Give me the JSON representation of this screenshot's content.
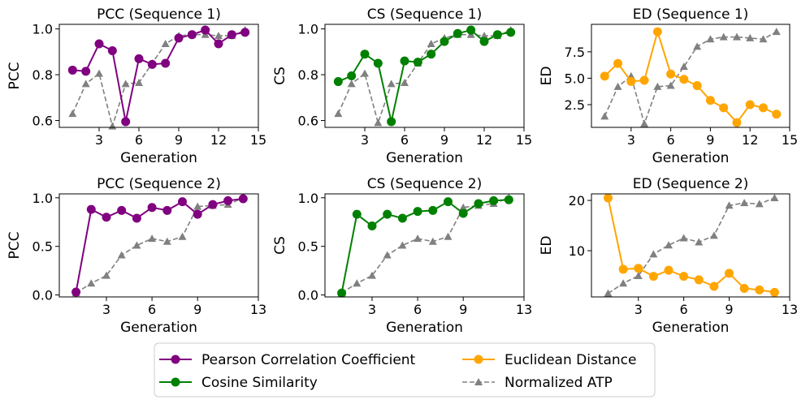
{
  "chart_data": [
    {
      "type": "line",
      "title": "PCC (Sequence 1)",
      "xlabel": "Generation",
      "ylabel": "PCC",
      "xlim": [
        0,
        15
      ],
      "ylim": [
        0.57,
        1.02
      ],
      "xticks": [
        3,
        6,
        9,
        12,
        15
      ],
      "xtick_labels": [
        "3",
        "6",
        "9",
        "12",
        "15"
      ],
      "yticks": [
        0.6,
        0.8,
        1.0
      ],
      "ytick_labels": [
        "0.6",
        "0.8",
        "1.0"
      ],
      "x": [
        1,
        2,
        3,
        4,
        5,
        6,
        7,
        8,
        9,
        10,
        11,
        12,
        13,
        14
      ],
      "series": [
        {
          "name": "Pearson Correlation Coefficient",
          "color": "#800080",
          "marker": "circle",
          "dashed": false,
          "values": [
            0.82,
            0.815,
            0.935,
            0.905,
            0.595,
            0.87,
            0.845,
            0.85,
            0.96,
            0.975,
            0.995,
            0.935,
            0.975,
            0.985
          ]
        },
        {
          "name": "Normalized ATP",
          "color": "#808080",
          "marker": "triangle",
          "dashed": true,
          "values": [
            0.63,
            0.76,
            0.805,
            0.575,
            0.76,
            0.765,
            0.85,
            0.935,
            0.97,
            0.975,
            0.975,
            0.97,
            0.97,
            0.995
          ]
        }
      ]
    },
    {
      "type": "line",
      "title": "CS (Sequence 1)",
      "xlabel": "Generation",
      "ylabel": "CS",
      "xlim": [
        0,
        15
      ],
      "ylim": [
        0.57,
        1.02
      ],
      "xticks": [
        3,
        6,
        9,
        12,
        15
      ],
      "xtick_labels": [
        "3",
        "6",
        "9",
        "12",
        "15"
      ],
      "yticks": [
        0.6,
        0.8,
        1.0
      ],
      "ytick_labels": [
        "0.6",
        "0.8",
        "1.0"
      ],
      "x": [
        1,
        2,
        3,
        4,
        5,
        6,
        7,
        8,
        9,
        10,
        11,
        12,
        13,
        14
      ],
      "series": [
        {
          "name": "Cosine Similarity",
          "color": "#008000",
          "marker": "circle",
          "dashed": false,
          "values": [
            0.77,
            0.795,
            0.89,
            0.85,
            0.595,
            0.86,
            0.855,
            0.89,
            0.945,
            0.98,
            0.995,
            0.945,
            0.975,
            0.985
          ]
        },
        {
          "name": "Normalized ATP",
          "color": "#808080",
          "marker": "triangle",
          "dashed": true,
          "values": [
            0.63,
            0.76,
            0.805,
            0.59,
            0.76,
            0.765,
            0.85,
            0.935,
            0.96,
            0.975,
            0.975,
            0.97,
            0.97,
            0.995
          ]
        }
      ]
    },
    {
      "type": "line",
      "title": "ED (Sequence 1)",
      "xlabel": "Generation",
      "ylabel": "ED",
      "xlim": [
        0,
        15
      ],
      "ylim": [
        0.35,
        10.1
      ],
      "xticks": [
        3,
        6,
        9,
        12,
        15
      ],
      "xtick_labels": [
        "3",
        "6",
        "9",
        "12",
        "15"
      ],
      "yticks": [
        2.5,
        5.0,
        7.5
      ],
      "ytick_labels": [
        "2.5",
        "5.0",
        "7.5"
      ],
      "x": [
        1,
        2,
        3,
        4,
        5,
        6,
        7,
        8,
        9,
        10,
        11,
        12,
        13,
        14
      ],
      "series": [
        {
          "name": "Euclidean Distance",
          "color": "#FFA500",
          "marker": "circle",
          "dashed": false,
          "values": [
            5.2,
            6.4,
            4.7,
            4.8,
            9.4,
            5.4,
            4.9,
            4.3,
            2.9,
            2.2,
            0.8,
            2.5,
            2.2,
            1.6
          ]
        },
        {
          "name": "Normalized ATP",
          "color": "#808080",
          "marker": "triangle",
          "dashed": true,
          "values": [
            1.4,
            4.2,
            5.2,
            0.7,
            4.2,
            4.3,
            6.1,
            8.0,
            8.7,
            8.9,
            8.9,
            8.8,
            8.7,
            9.4
          ]
        }
      ]
    },
    {
      "type": "line",
      "title": "PCC (Sequence 2)",
      "xlabel": "Generation",
      "ylabel": "PCC",
      "xlim": [
        -0.1,
        13
      ],
      "ylim": [
        -0.02,
        1.04
      ],
      "xticks": [
        3,
        6,
        9,
        13
      ],
      "xtick_labels": [
        "3",
        "6",
        "9",
        "13"
      ],
      "yticks": [
        0.0,
        0.5,
        1.0
      ],
      "ytick_labels": [
        "0.0",
        "0.5",
        "1.0"
      ],
      "x": [
        1,
        2,
        3,
        4,
        5,
        6,
        7,
        8,
        9,
        10,
        11,
        12
      ],
      "series": [
        {
          "name": "Pearson Correlation Coefficient",
          "color": "#800080",
          "marker": "circle",
          "dashed": false,
          "values": [
            0.03,
            0.88,
            0.8,
            0.87,
            0.79,
            0.9,
            0.87,
            0.96,
            0.83,
            0.93,
            0.97,
            0.99
          ]
        },
        {
          "name": "Normalized ATP",
          "color": "#808080",
          "marker": "triangle",
          "dashed": true,
          "values": [
            0.02,
            0.12,
            0.2,
            0.41,
            0.51,
            0.58,
            0.55,
            0.6,
            0.91,
            0.92,
            0.93,
            1.0
          ]
        }
      ]
    },
    {
      "type": "line",
      "title": "CS (Sequence 2)",
      "xlabel": "Generation",
      "ylabel": "CS",
      "xlim": [
        -0.1,
        13
      ],
      "ylim": [
        -0.02,
        1.04
      ],
      "xticks": [
        3,
        6,
        9,
        13
      ],
      "xtick_labels": [
        "3",
        "6",
        "9",
        "13"
      ],
      "yticks": [
        0.0,
        0.5,
        1.0
      ],
      "ytick_labels": [
        "0.0",
        "0.5",
        "1.0"
      ],
      "x": [
        1,
        2,
        3,
        4,
        5,
        6,
        7,
        8,
        9,
        10,
        11,
        12
      ],
      "series": [
        {
          "name": "Cosine Similarity",
          "color": "#008000",
          "marker": "circle",
          "dashed": false,
          "values": [
            0.02,
            0.83,
            0.71,
            0.83,
            0.79,
            0.86,
            0.87,
            0.96,
            0.84,
            0.94,
            0.97,
            0.98
          ]
        },
        {
          "name": "Normalized ATP",
          "color": "#808080",
          "marker": "triangle",
          "dashed": true,
          "values": [
            0.02,
            0.12,
            0.2,
            0.41,
            0.51,
            0.58,
            0.55,
            0.6,
            0.9,
            0.92,
            0.94,
            1.0
          ]
        }
      ]
    },
    {
      "type": "line",
      "title": "ED (Sequence 2)",
      "xlabel": "Generation",
      "ylabel": "ED",
      "xlim": [
        -0.1,
        13
      ],
      "ylim": [
        0.8,
        21.3
      ],
      "xticks": [
        3,
        6,
        9,
        13
      ],
      "xtick_labels": [
        "3",
        "6",
        "9",
        "13"
      ],
      "yticks": [
        10,
        20
      ],
      "ytick_labels": [
        "10",
        "20"
      ],
      "x": [
        1,
        2,
        3,
        4,
        5,
        6,
        7,
        8,
        9,
        10,
        11,
        12
      ],
      "series": [
        {
          "name": "Euclidean Distance",
          "color": "#FFA500",
          "marker": "circle",
          "dashed": false,
          "values": [
            20.5,
            6.3,
            6.5,
            4.9,
            6.1,
            4.9,
            4.2,
            2.9,
            5.5,
            2.5,
            2.2,
            1.7
          ]
        },
        {
          "name": "Normalized ATP",
          "color": "#808080",
          "marker": "triangle",
          "dashed": true,
          "values": [
            1.5,
            3.5,
            5.0,
            9.3,
            11.1,
            12.5,
            11.7,
            13.0,
            19.0,
            19.5,
            19.3,
            20.5
          ]
        }
      ]
    }
  ],
  "legend": {
    "position": "bottom-center",
    "entries": [
      {
        "label": "Pearson Correlation Coefficient",
        "color": "#800080",
        "marker": "circle",
        "dashed": false
      },
      {
        "label": "Euclidean Distance",
        "color": "#FFA500",
        "marker": "circle",
        "dashed": false
      },
      {
        "label": "Cosine Similarity",
        "color": "#008000",
        "marker": "circle",
        "dashed": false
      },
      {
        "label": "Normalized ATP",
        "color": "#808080",
        "marker": "triangle",
        "dashed": true
      }
    ]
  }
}
